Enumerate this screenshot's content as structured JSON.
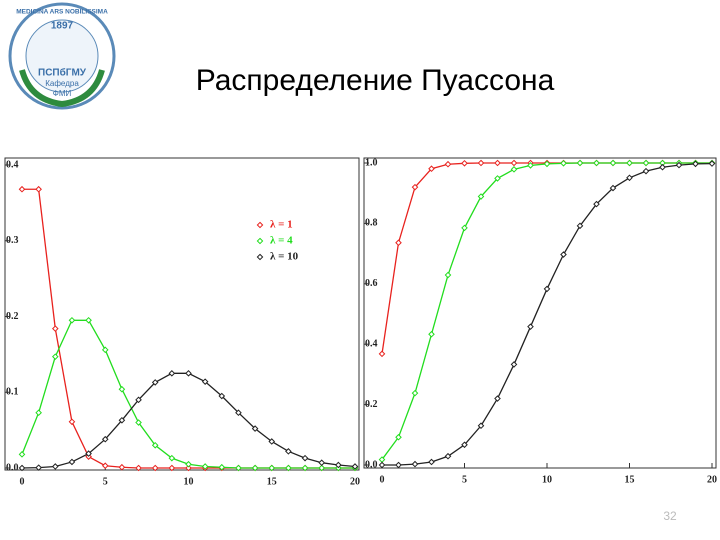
{
  "logo": {
    "motto": "MEDICINA ARS NOBILISSIMA",
    "year": "1897",
    "name": "ПСПбГМУ",
    "dept": "Кафедра",
    "unit": "ФМИ"
  },
  "page_number": "32",
  "chart_data": [
    {
      "type": "line",
      "title": "Распределение Пуассона",
      "x": [
        0,
        1,
        2,
        3,
        4,
        5,
        6,
        7,
        8,
        9,
        10,
        11,
        12,
        13,
        14,
        15,
        16,
        17,
        18,
        19,
        20
      ],
      "xlim": [
        0,
        20
      ],
      "xticks": [
        0,
        5,
        10,
        15,
        20
      ],
      "ylim": [
        0,
        0.4
      ],
      "yticks": [
        {
          "value": 0,
          "label": "0.0"
        },
        0.1,
        0.2,
        0.3,
        0.4
      ],
      "legend": "upper right",
      "series": [
        {
          "name": "λ = 1",
          "color": "#e8221e",
          "values": [
            0.368,
            0.368,
            0.184,
            0.061,
            0.015,
            0.003,
            0.001,
            0,
            0,
            0,
            0,
            0,
            0,
            0,
            0,
            0,
            0,
            0,
            0,
            0,
            0
          ]
        },
        {
          "name": "λ = 4",
          "color": "#22dd1e",
          "values": [
            0.018,
            0.073,
            0.147,
            0.195,
            0.195,
            0.156,
            0.104,
            0.06,
            0.03,
            0.013,
            0.005,
            0.002,
            0.001,
            0,
            0,
            0,
            0,
            0,
            0,
            0,
            0
          ]
        },
        {
          "name": "λ = 10",
          "color": "#222222",
          "values": [
            0,
            0.0005,
            0.002,
            0.008,
            0.019,
            0.038,
            0.063,
            0.09,
            0.113,
            0.125,
            0.125,
            0.114,
            0.095,
            0.073,
            0.052,
            0.035,
            0.022,
            0.013,
            0.007,
            0.004,
            0.002
          ]
        }
      ]
    },
    {
      "type": "line",
      "x": [
        0,
        1,
        2,
        3,
        4,
        5,
        6,
        7,
        8,
        9,
        10,
        11,
        12,
        13,
        14,
        15,
        16,
        17,
        18,
        19,
        20
      ],
      "xlim": [
        0,
        20
      ],
      "xticks": [
        0,
        5,
        10,
        15,
        20
      ],
      "ylim": [
        0,
        1
      ],
      "yticks": [
        {
          "value": 0,
          "label": "0.0"
        },
        0.2,
        0.4,
        0.6,
        0.8,
        {
          "value": 1,
          "label": "1.0"
        }
      ],
      "series": [
        {
          "color": "#e8221e",
          "values": [
            0.368,
            0.736,
            0.92,
            0.981,
            0.996,
            0.999,
            1,
            1,
            1,
            1,
            1,
            1,
            1,
            1,
            1,
            1,
            1,
            1,
            1,
            1,
            1
          ]
        },
        {
          "color": "#22dd1e",
          "values": [
            0.018,
            0.092,
            0.238,
            0.433,
            0.629,
            0.785,
            0.889,
            0.949,
            0.979,
            0.992,
            0.997,
            0.999,
            1,
            1,
            1,
            1,
            1,
            1,
            1,
            1,
            1
          ]
        },
        {
          "color": "#222222",
          "values": [
            0,
            0,
            0.003,
            0.01,
            0.029,
            0.067,
            0.13,
            0.22,
            0.333,
            0.458,
            0.583,
            0.697,
            0.792,
            0.864,
            0.917,
            0.951,
            0.973,
            0.986,
            0.993,
            0.997,
            0.998
          ]
        }
      ]
    }
  ]
}
